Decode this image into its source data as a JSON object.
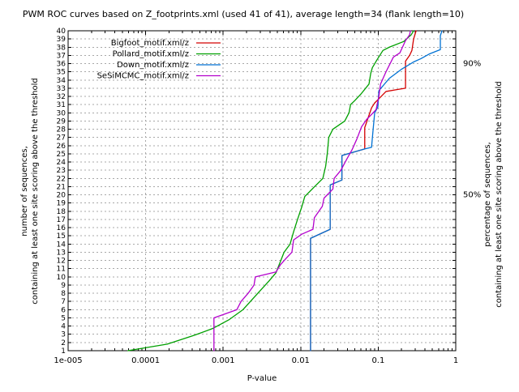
{
  "chart_data": {
    "type": "line",
    "title": "PWM ROC curves based on Z_footprints.xml (used 41 of 41), average length=34 (flank length=10)",
    "xlabel": "P-value",
    "x_scale": "log",
    "xlim": [
      1e-05,
      1
    ],
    "x_ticks": [
      {
        "p": 1e-05,
        "label": "1e-005"
      },
      {
        "p": 0.0001,
        "label": "0.0001"
      },
      {
        "p": 0.001,
        "label": "0.001"
      },
      {
        "p": 0.01,
        "label": "0.01"
      },
      {
        "p": 0.1,
        "label": "0.1"
      },
      {
        "p": 1,
        "label": "1"
      }
    ],
    "ylabel": [
      "number of sequences,",
      "containing at least one site scoring above the threshold"
    ],
    "ylim": [
      1,
      40
    ],
    "y_tick_step": 1,
    "y2label": [
      "percentage of sequences,",
      "containing at least one site scoring above the threshold"
    ],
    "y2_ticks": [
      {
        "label": "90%",
        "count": 36
      },
      {
        "label": "50%",
        "count": 20
      }
    ],
    "grid": true,
    "legend_position": "top-left",
    "series": [
      {
        "name": "Bigfoot_motif.xml/z",
        "color": "#d40000",
        "points": [
          [
            0.0134,
            1
          ],
          [
            0.0134,
            14.7
          ],
          [
            0.024,
            15.8
          ],
          [
            0.024,
            21.2
          ],
          [
            0.034,
            21.8
          ],
          [
            0.034,
            24.8
          ],
          [
            0.067,
            25.6
          ],
          [
            0.067,
            28.2
          ],
          [
            0.082,
            30.6
          ],
          [
            0.09,
            31.2
          ],
          [
            0.104,
            31.8
          ],
          [
            0.126,
            32.6
          ],
          [
            0.168,
            32.8
          ],
          [
            0.225,
            33.0
          ],
          [
            0.225,
            36.3
          ],
          [
            0.254,
            37.0
          ],
          [
            0.272,
            37.6
          ],
          [
            0.286,
            39.0
          ],
          [
            0.308,
            40
          ]
        ]
      },
      {
        "name": "Pollard_motif.xml/z",
        "color": "#00a000",
        "points": [
          [
            5.9e-05,
            1
          ],
          [
            0.00019,
            1.8
          ],
          [
            0.00043,
            2.9
          ],
          [
            0.00073,
            3.7
          ],
          [
            0.0012,
            4.8
          ],
          [
            0.0018,
            6.0
          ],
          [
            0.0028,
            8.0
          ],
          [
            0.0039,
            9.5
          ],
          [
            0.0048,
            10.5
          ],
          [
            0.0061,
            13.0
          ],
          [
            0.0073,
            14.0
          ],
          [
            0.0081,
            15.5
          ],
          [
            0.0091,
            17.0
          ],
          [
            0.0103,
            18.5
          ],
          [
            0.0113,
            19.8
          ],
          [
            0.0151,
            21.0
          ],
          [
            0.0193,
            22.0
          ],
          [
            0.021,
            23.5
          ],
          [
            0.022,
            25.0
          ],
          [
            0.023,
            27.0
          ],
          [
            0.026,
            28.0
          ],
          [
            0.037,
            29.0
          ],
          [
            0.042,
            30.0
          ],
          [
            0.044,
            31.0
          ],
          [
            0.05,
            31.5
          ],
          [
            0.06,
            32.3
          ],
          [
            0.076,
            33.5
          ],
          [
            0.08,
            34.8
          ],
          [
            0.084,
            35.5
          ],
          [
            0.097,
            36.5
          ],
          [
            0.115,
            37.6
          ],
          [
            0.139,
            38.0
          ],
          [
            0.214,
            38.7
          ],
          [
            0.266,
            39.5
          ],
          [
            0.286,
            40
          ]
        ]
      },
      {
        "name": "Down_motif.xml/z",
        "color": "#0072d4",
        "points": [
          [
            0.0134,
            1
          ],
          [
            0.0134,
            14.7
          ],
          [
            0.024,
            15.8
          ],
          [
            0.024,
            21.2
          ],
          [
            0.034,
            21.8
          ],
          [
            0.034,
            24.8
          ],
          [
            0.067,
            25.6
          ],
          [
            0.082,
            25.8
          ],
          [
            0.086,
            28.0
          ],
          [
            0.09,
            30.0
          ],
          [
            0.099,
            30.7
          ],
          [
            0.102,
            32.7
          ],
          [
            0.139,
            34.2
          ],
          [
            0.199,
            35.3
          ],
          [
            0.286,
            36.2
          ],
          [
            0.355,
            36.6
          ],
          [
            0.463,
            37.2
          ],
          [
            0.633,
            37.7
          ],
          [
            0.633,
            39.4
          ],
          [
            0.664,
            40
          ]
        ]
      },
      {
        "name": "SeSiMCMC_motif.xml/z",
        "color": "#b300cc",
        "points": [
          [
            0.00076,
            1
          ],
          [
            0.00076,
            5
          ],
          [
            0.0015,
            6
          ],
          [
            0.0017,
            7
          ],
          [
            0.0021,
            8
          ],
          [
            0.0025,
            9
          ],
          [
            0.0026,
            10
          ],
          [
            0.0048,
            10.6
          ],
          [
            0.0055,
            11.5
          ],
          [
            0.0064,
            12.2
          ],
          [
            0.0077,
            13.0
          ],
          [
            0.0081,
            14.5
          ],
          [
            0.0103,
            15.2
          ],
          [
            0.0144,
            15.8
          ],
          [
            0.015,
            17.2
          ],
          [
            0.019,
            18.6
          ],
          [
            0.02,
            19.6
          ],
          [
            0.026,
            20.7
          ],
          [
            0.027,
            22.0
          ],
          [
            0.033,
            23.0
          ],
          [
            0.039,
            24.3
          ],
          [
            0.046,
            25.5
          ],
          [
            0.053,
            26.8
          ],
          [
            0.061,
            28.3
          ],
          [
            0.071,
            29.2
          ],
          [
            0.082,
            29.8
          ],
          [
            0.094,
            30.4
          ],
          [
            0.102,
            32.0
          ],
          [
            0.107,
            33.5
          ],
          [
            0.126,
            35.0
          ],
          [
            0.157,
            36.8
          ],
          [
            0.19,
            37.3
          ],
          [
            0.225,
            38.8
          ],
          [
            0.254,
            39.5
          ],
          [
            0.26,
            40
          ]
        ]
      }
    ]
  }
}
